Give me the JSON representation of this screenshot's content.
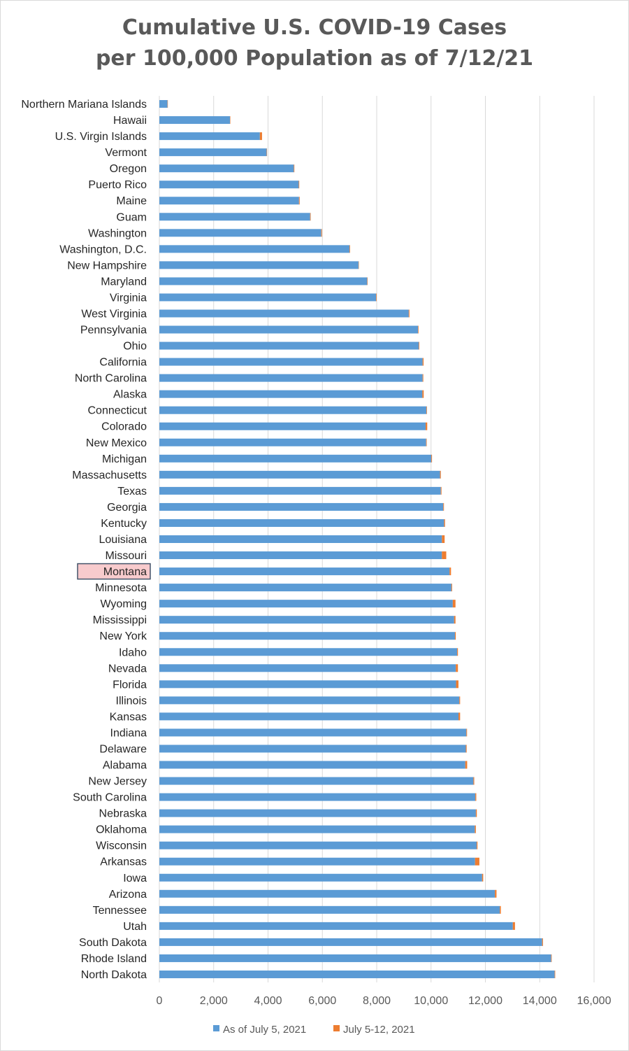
{
  "chart_data": {
    "type": "bar",
    "orientation": "horizontal",
    "stacked": true,
    "title_line1": "Cumulative U.S. COVID-19 Cases",
    "title_line2": "per 100,000 Population as of 7/12/21",
    "xlim": [
      0,
      16000
    ],
    "xticks": [
      "0",
      "2,000",
      "4,000",
      "6,000",
      "8,000",
      "10,000",
      "12,000",
      "14,000",
      "16,000"
    ],
    "grid": true,
    "legend_position": "bottom",
    "highlight_category": "Montana",
    "colors": {
      "series1": "#5b9bd5",
      "series2": "#ed7d31",
      "highlight_fill": "#f8cbcd",
      "highlight_border": "#44546a",
      "grid": "#d9d9d9",
      "text": "#262626"
    },
    "categories": [
      "Northern Mariana Islands",
      "Hawaii",
      "U.S. Virgin Islands",
      "Vermont",
      "Oregon",
      "Puerto Rico",
      "Maine",
      "Guam",
      "Washington",
      "Washington, D.C.",
      "New Hampshire",
      "Maryland",
      "Virginia",
      "West Virginia",
      "Pennsylvania",
      "Ohio",
      "California",
      "North Carolina",
      "Alaska",
      "Connecticut",
      "Colorado",
      "New Mexico",
      "Michigan",
      "Massachusetts",
      "Texas",
      "Georgia",
      "Kentucky",
      "Louisiana",
      "Missouri",
      "Montana",
      "Minnesota",
      "Wyoming",
      "Mississippi",
      "New York",
      "Idaho",
      "Nevada",
      "Florida",
      "Illinois",
      "Kansas",
      "Indiana",
      "Delaware",
      "Alabama",
      "New Jersey",
      "South Carolina",
      "Nebraska",
      "Oklahoma",
      "Wisconsin",
      "Arkansas",
      "Iowa",
      "Arizona",
      "Tennessee",
      "Utah",
      "South Dakota",
      "Rhode Island",
      "North Dakota"
    ],
    "series": [
      {
        "name": "As of July 5, 2021",
        "values": [
          300,
          2600,
          3700,
          3950,
          4950,
          5130,
          5140,
          5550,
          5960,
          7000,
          7330,
          7650,
          7980,
          9180,
          9520,
          9550,
          9690,
          9690,
          9680,
          9830,
          9800,
          9820,
          10010,
          10330,
          10360,
          10450,
          10480,
          10400,
          10400,
          10680,
          10750,
          10800,
          10850,
          10880,
          10960,
          10910,
          10920,
          11040,
          11010,
          11300,
          11280,
          11260,
          11560,
          11630,
          11650,
          11610,
          11680,
          11620,
          11880,
          12350,
          12530,
          13010,
          14090,
          14420,
          14550
        ]
      },
      {
        "name": "July 5-12, 2021",
        "values": [
          5,
          5,
          80,
          10,
          20,
          20,
          25,
          20,
          25,
          20,
          10,
          15,
          20,
          25,
          20,
          20,
          35,
          25,
          50,
          20,
          60,
          20,
          25,
          30,
          25,
          25,
          35,
          100,
          160,
          55,
          25,
          100,
          50,
          30,
          30,
          80,
          90,
          30,
          60,
          25,
          30,
          70,
          30,
          35,
          35,
          40,
          30,
          160,
          40,
          60,
          40,
          80,
          30,
          20,
          20
        ]
      }
    ]
  }
}
